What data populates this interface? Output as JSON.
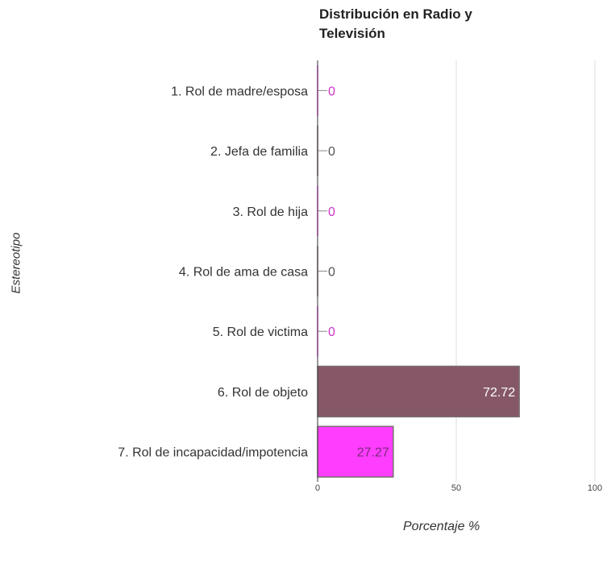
{
  "chart_data": {
    "type": "bar",
    "orientation": "horizontal",
    "title": "Distribución en Radio y Televisión",
    "title_lines": [
      "Distribución en Radio y",
      "Televisión"
    ],
    "xlabel": "Porcentaje %",
    "ylabel": "Estereotipo",
    "xlim": [
      0,
      100
    ],
    "xticks": [
      "0",
      "50",
      "100"
    ],
    "grid": true,
    "categories": [
      "1. Rol de madre/esposa",
      "2. Jefa de familia",
      "3. Rol de hija",
      "4. Rol de ama de casa",
      "5. Rol de victima",
      "6. Rol de objeto",
      "7. Rol de incapacidad/impotencia"
    ],
    "values": [
      0,
      0,
      0,
      0,
      0,
      72.72,
      27.27
    ],
    "value_labels": [
      "0",
      "0",
      "0",
      "0",
      "0",
      "72.72",
      "27.27"
    ],
    "bar_colors": [
      "#ff33ff",
      "#7f4f5f",
      "#ff33ff",
      "#7f4f5f",
      "#ff33ff",
      "#7f4f5f",
      "#ff33ff"
    ],
    "label_colors": [
      "#cc33cc",
      "#555555",
      "#cc33cc",
      "#555555",
      "#cc33cc",
      "#ffffff",
      "#7a2a7a"
    ]
  }
}
